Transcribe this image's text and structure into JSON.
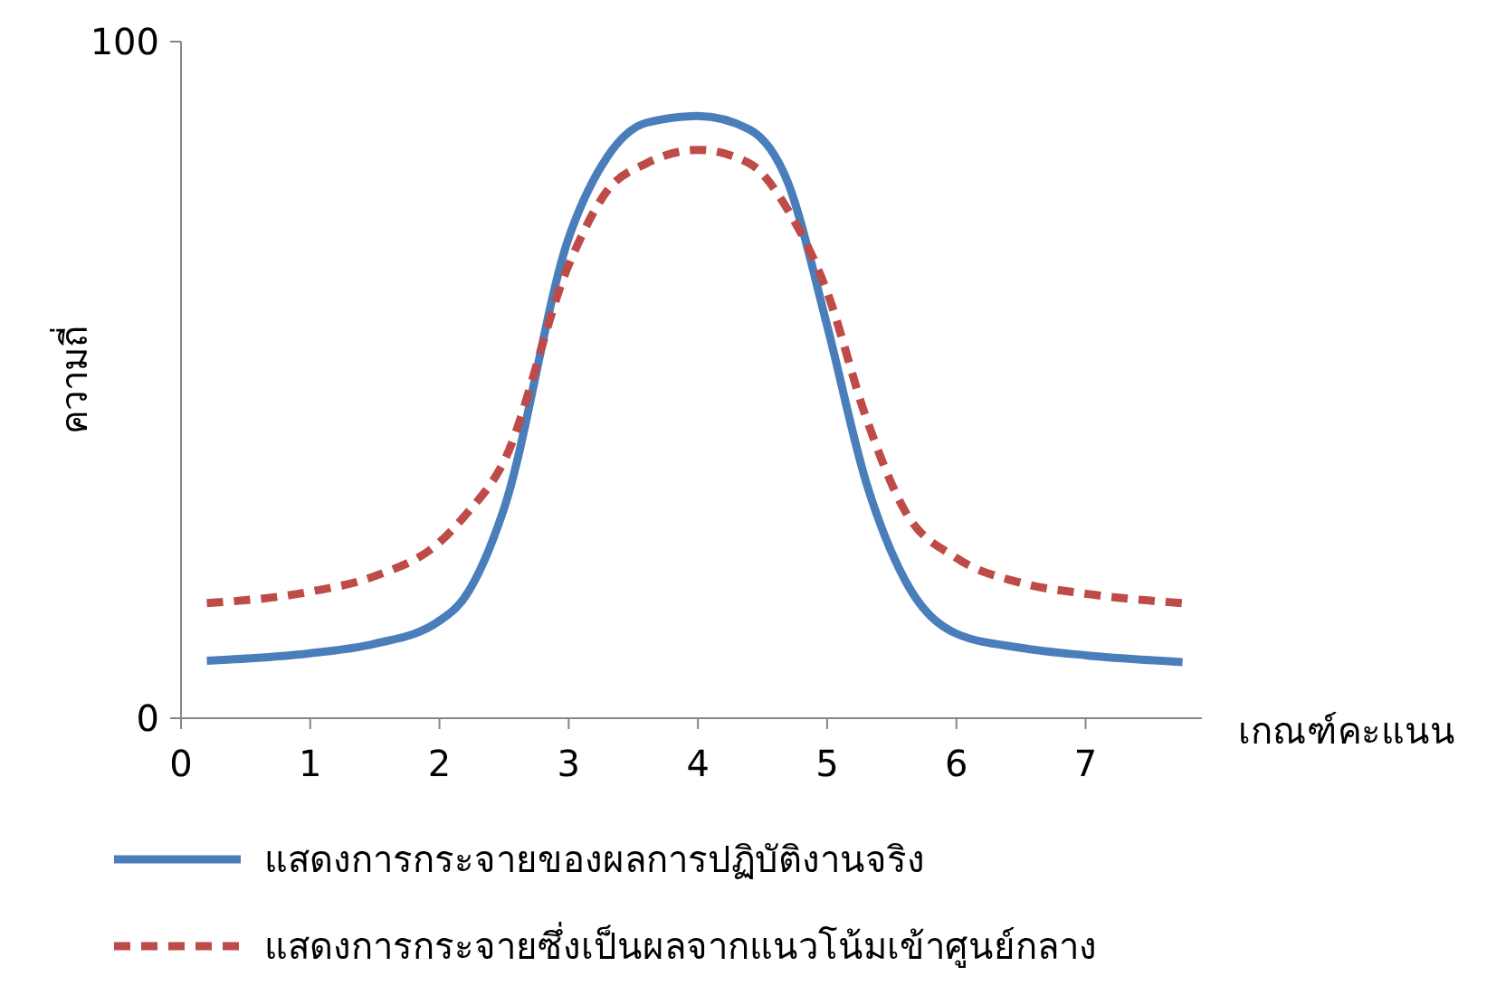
{
  "chart_data": {
    "type": "line",
    "xlabel": "เกณฑ์คะแนน",
    "ylabel": "ความถี่",
    "x": [
      0.2,
      1,
      1.5,
      2,
      2.2,
      2.5,
      3,
      3.3,
      3.6,
      4,
      4.4,
      4.7,
      5,
      5.3,
      5.6,
      6,
      6.5,
      7,
      7.75
    ],
    "series": [
      {
        "name": "แสดงการกระจายของผลการปฏิบัติงานจริง",
        "color": "#4a7ebb",
        "line_style": "solid",
        "values": [
          8.5,
          9.6,
          11,
          14.4,
          18,
          31,
          71,
          83,
          88,
          89,
          87,
          79,
          58,
          35,
          20.5,
          12.5,
          10.4,
          9.3,
          8.3
        ]
      },
      {
        "name": "แสดงการกระจายซึ่งเป็นผลจากแนวโน้มเข้าศูนย์กลาง",
        "color": "#be4b48",
        "line_style": "dashed",
        "values": [
          17,
          18.7,
          21,
          26,
          30,
          38,
          67,
          78,
          82,
          84,
          82,
          75,
          63,
          44.5,
          30.7,
          23.7,
          20,
          18.4,
          17
        ]
      }
    ],
    "xlim": [
      0,
      7.9
    ],
    "ylim": [
      0,
      100
    ],
    "xticks": [
      0,
      1,
      2,
      3,
      4,
      5,
      6,
      7
    ],
    "yticks": [
      0,
      100
    ],
    "grid": false,
    "legend": "bottom",
    "marker": "none"
  }
}
